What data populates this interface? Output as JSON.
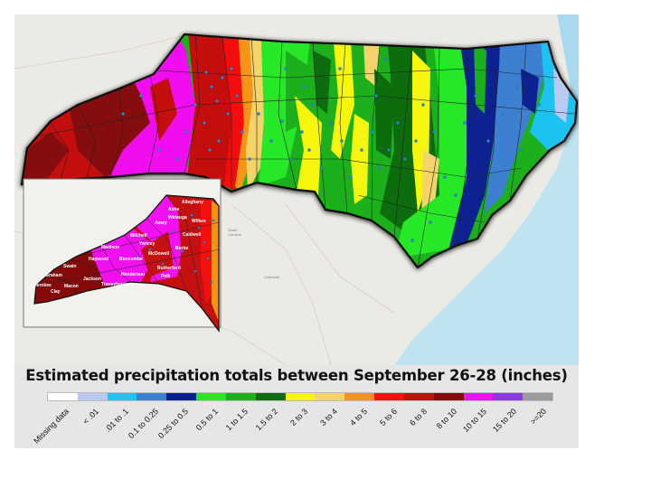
{
  "map": {
    "title": "Estimated precipitation totals between September 26-28 (inches)",
    "legend": [
      {
        "label": "Missing data",
        "color": "#ffffff"
      },
      {
        "label": "< .01",
        "color": "#b9c9f0"
      },
      {
        "label": ".01 to .1",
        "color": "#1fc3f0"
      },
      {
        "label": "0.1 to 0.25",
        "color": "#3d7fd0"
      },
      {
        "label": "0.25 to 0.5",
        "color": "#0a2090"
      },
      {
        "label": "0.5 to 1",
        "color": "#28e826"
      },
      {
        "label": "1 to 1.5",
        "color": "#1db01c"
      },
      {
        "label": "1.5 to 2",
        "color": "#0f6c0f"
      },
      {
        "label": "2 to 3",
        "color": "#f5f510"
      },
      {
        "label": "3 to 4",
        "color": "#f4d46a"
      },
      {
        "label": "4 to 5",
        "color": "#f59414"
      },
      {
        "label": "5 to 6",
        "color": "#f51010"
      },
      {
        "label": "6 to 8",
        "color": "#c41010"
      },
      {
        "label": "8 to 10",
        "color": "#850a0a"
      },
      {
        "label": "10 to 15",
        "color": "#f010f0"
      },
      {
        "label": "15 to 20",
        "color": "#8a3ae0"
      },
      {
        "label": ">=20",
        "color": "#9b9b9b"
      }
    ],
    "inset_counties": [
      "Alleghany",
      "Ashe",
      "Watauga",
      "Wilkes",
      "Avery",
      "Caldwell",
      "Mitchell",
      "Yancey",
      "Madison",
      "Burke",
      "McDowell",
      "Haywood",
      "Buncombe",
      "Swain",
      "Rutherford",
      "Henderson",
      "Graham",
      "Polk",
      "Jackson",
      "Transylvania",
      "Cherokee",
      "Macon",
      "Clay"
    ],
    "basemap_labels": [
      "South Carolina",
      "Columbia"
    ]
  }
}
